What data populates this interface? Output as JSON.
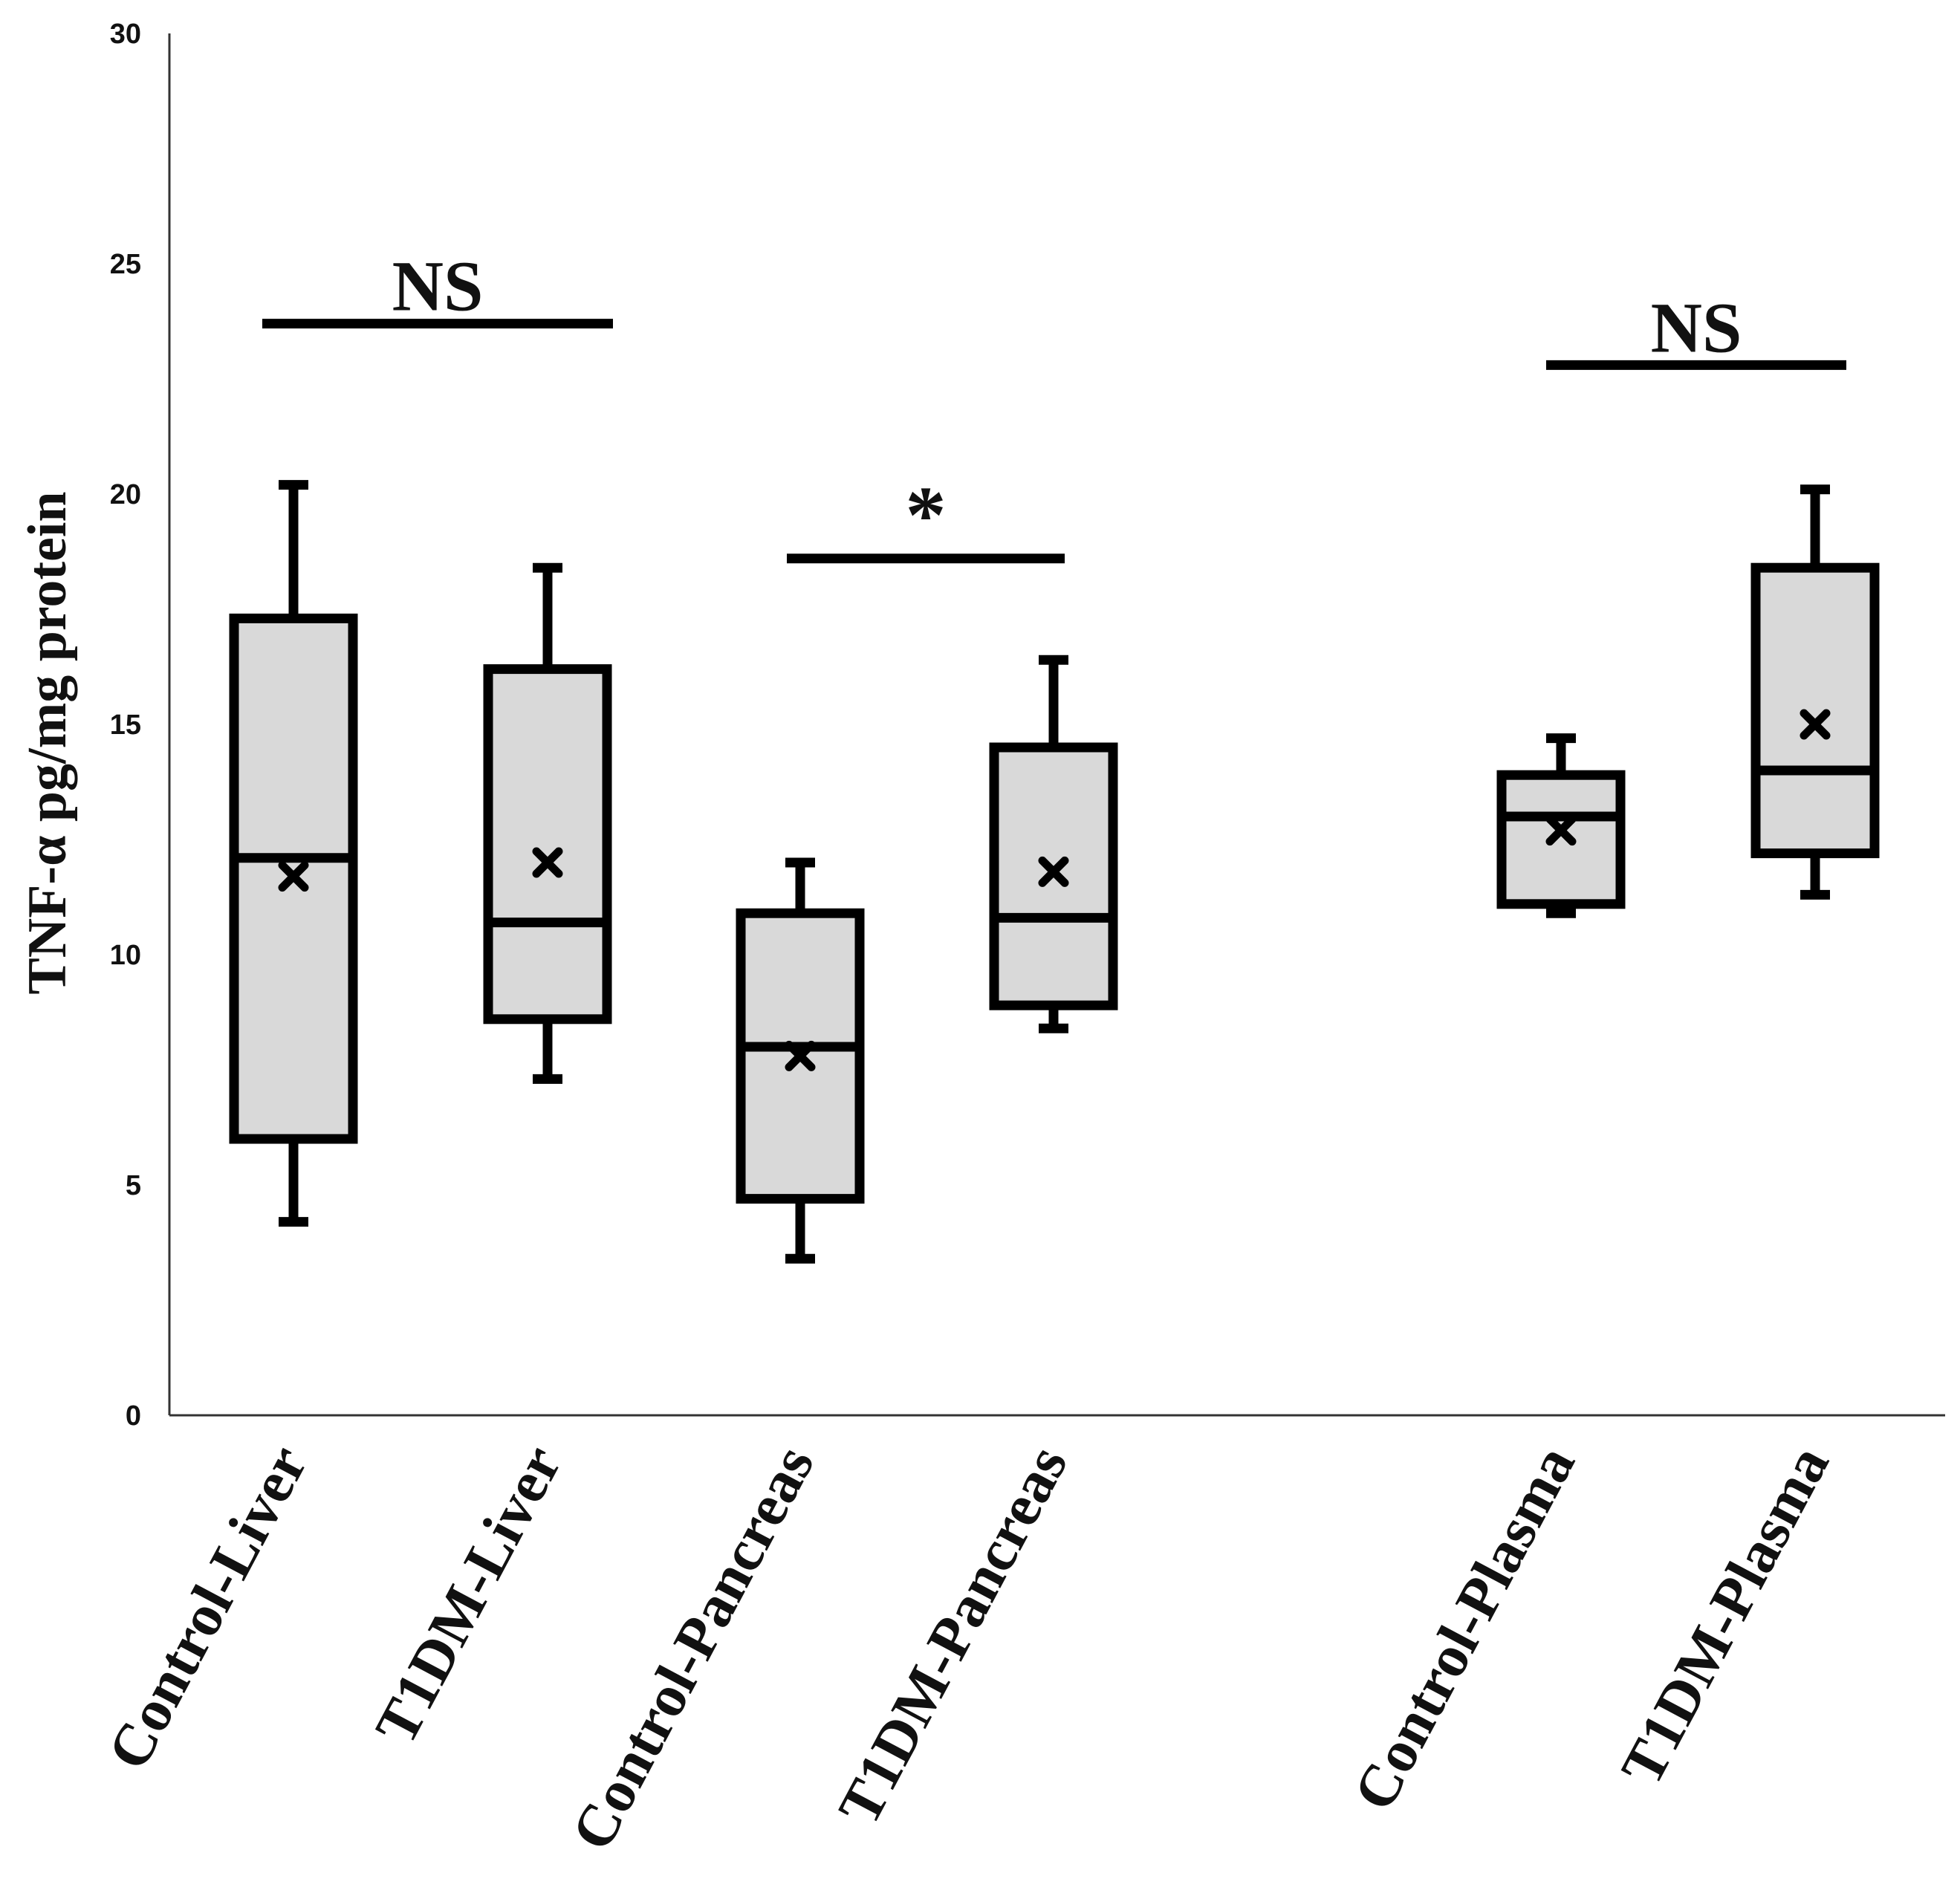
{
  "chart_data": {
    "type": "boxplot",
    "title": "",
    "xlabel": "",
    "ylabel": "TNF-α pg/mg protein",
    "ylim": [
      0,
      30
    ],
    "yticks": [
      0,
      5,
      10,
      15,
      20,
      25,
      30
    ],
    "grid": false,
    "legend": "none",
    "categories": [
      "Control-Liver",
      "T1DM-Liver",
      "Control-Pancreas",
      "T1DM-Pancreas",
      "Control-Plasma",
      "T1DM-Plasma"
    ],
    "boxes": [
      {
        "name": "Control-Liver",
        "min": 4.2,
        "q1": 6.0,
        "median": 12.1,
        "q3": 17.3,
        "max": 20.2,
        "mean": 11.7
      },
      {
        "name": "T1DM-Liver",
        "min": 7.3,
        "q1": 8.6,
        "median": 10.7,
        "q3": 16.2,
        "max": 18.4,
        "mean": 12.0
      },
      {
        "name": "Control-Pancreas",
        "min": 3.4,
        "q1": 4.7,
        "median": 8.0,
        "q3": 10.9,
        "max": 12.0,
        "mean": 7.8
      },
      {
        "name": "T1DM-Pancreas",
        "min": 8.4,
        "q1": 8.9,
        "median": 10.8,
        "q3": 14.5,
        "max": 16.4,
        "mean": 11.8
      },
      {
        "name": "Control-Plasma",
        "min": 10.9,
        "q1": 11.1,
        "median": 13.0,
        "q3": 13.9,
        "max": 14.7,
        "mean": 12.7
      },
      {
        "name": "T1DM-Plasma",
        "min": 11.3,
        "q1": 12.2,
        "median": 14.0,
        "q3": 18.4,
        "max": 20.1,
        "mean": 15.0
      }
    ],
    "annotations": [
      {
        "label": "NS",
        "from": 0,
        "to": 1,
        "y": 23.7
      },
      {
        "label": "*",
        "from": 2,
        "to": 3,
        "y": 18.6
      },
      {
        "label": "NS",
        "from": 4,
        "to": 5,
        "y": 22.8
      }
    ]
  }
}
